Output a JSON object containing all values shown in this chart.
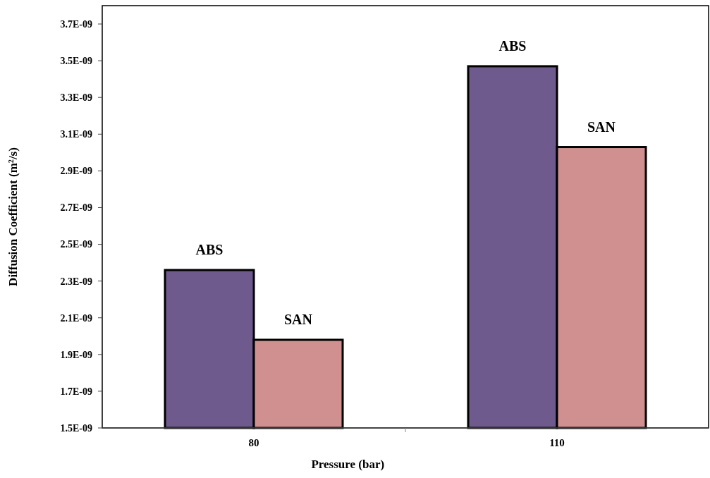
{
  "chart_data": {
    "type": "bar",
    "xlabel": "Pressure (bar)",
    "ylabel": "Diffusion Coefficient (m²/s)",
    "categories": [
      "80",
      "110"
    ],
    "series": [
      {
        "name": "ABS",
        "color": "#6f5a8e",
        "values": [
          2.36e-09,
          3.47e-09
        ]
      },
      {
        "name": "SAN",
        "color": "#d09090",
        "values": [
          1.98e-09,
          3.03e-09
        ]
      }
    ],
    "ylim": [
      1.5e-09,
      3.8e-09
    ],
    "yticks": [
      {
        "value": 1.5e-09,
        "label": "1.5E-09"
      },
      {
        "value": 1.7e-09,
        "label": "1.7E-09"
      },
      {
        "value": 1.9e-09,
        "label": "1.9E-09"
      },
      {
        "value": 2.1e-09,
        "label": "2.1E-09"
      },
      {
        "value": 2.3e-09,
        "label": "2.3E-09"
      },
      {
        "value": 2.5e-09,
        "label": "2.5E-09"
      },
      {
        "value": 2.7e-09,
        "label": "2.7E-09"
      },
      {
        "value": 2.9e-09,
        "label": "2.9E-09"
      },
      {
        "value": 3.1e-09,
        "label": "3.1E-09"
      },
      {
        "value": 3.3e-09,
        "label": "3.3E-09"
      },
      {
        "value": 3.5e-09,
        "label": "3.5E-09"
      },
      {
        "value": 3.7e-09,
        "label": "3.7E-09"
      }
    ],
    "grid": false,
    "legend": false
  }
}
